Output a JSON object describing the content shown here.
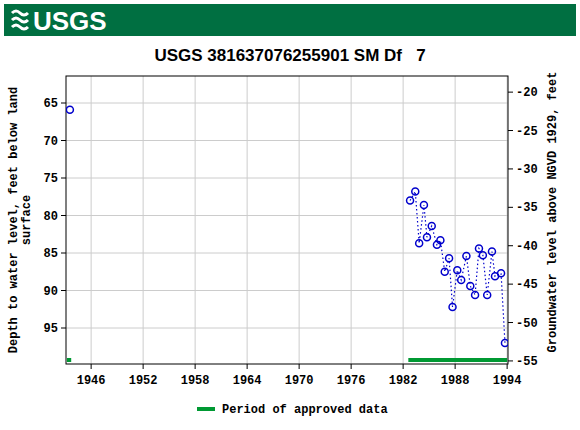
{
  "chart_data": {
    "type": "line",
    "logo": "USGS",
    "title": "USGS 381637076255901 SM Df   7",
    "y_label": [
      "Depth to water level, feet below land",
      "surface"
    ],
    "y2_label": "Groundwater level above NGVD 1929, feet",
    "x": [
      1943.55,
      null,
      1982.8,
      1983.4,
      1983.85,
      1984.4,
      1984.75,
      1985.3,
      1985.9,
      1986.3,
      1986.8,
      1987.3,
      1987.7,
      1988.25,
      1988.7,
      1989.3,
      1989.75,
      1990.3,
      1990.75,
      1991.2,
      1991.7,
      1992.25,
      1992.6,
      1993.3,
      1993.75
    ],
    "series": [
      {
        "name": "Depth to water level",
        "color": "#0000cc",
        "marker": "open-circle",
        "line_style": "dotted",
        "values": [
          65.9,
          null,
          78.0,
          76.8,
          83.7,
          78.6,
          82.9,
          81.4,
          83.9,
          83.3,
          87.5,
          85.7,
          92.2,
          87.3,
          88.6,
          85.4,
          89.4,
          90.6,
          84.4,
          85.3,
          90.6,
          84.8,
          88.1,
          87.7,
          97.0
        ]
      }
    ],
    "approved_periods": [
      [
        1943.2,
        1943.7
      ],
      [
        1982.6,
        1994.0
      ]
    ],
    "approved_name": "Period of approved data",
    "approved_color": "#009933",
    "xlim": [
      1943.1,
      1994.1
    ],
    "xticks": [
      1946,
      1952,
      1958,
      1964,
      1970,
      1976,
      1982,
      1988,
      1994
    ],
    "ylim": [
      61.4,
      99.8
    ],
    "yticks": [
      65,
      70,
      75,
      80,
      85,
      90,
      95
    ],
    "y2lim": [
      -17.9,
      -55.4
    ],
    "y2ticks": [
      -20,
      -25,
      -30,
      -35,
      -40,
      -45,
      -50,
      -55
    ],
    "grid": true,
    "legend": "bottom"
  }
}
